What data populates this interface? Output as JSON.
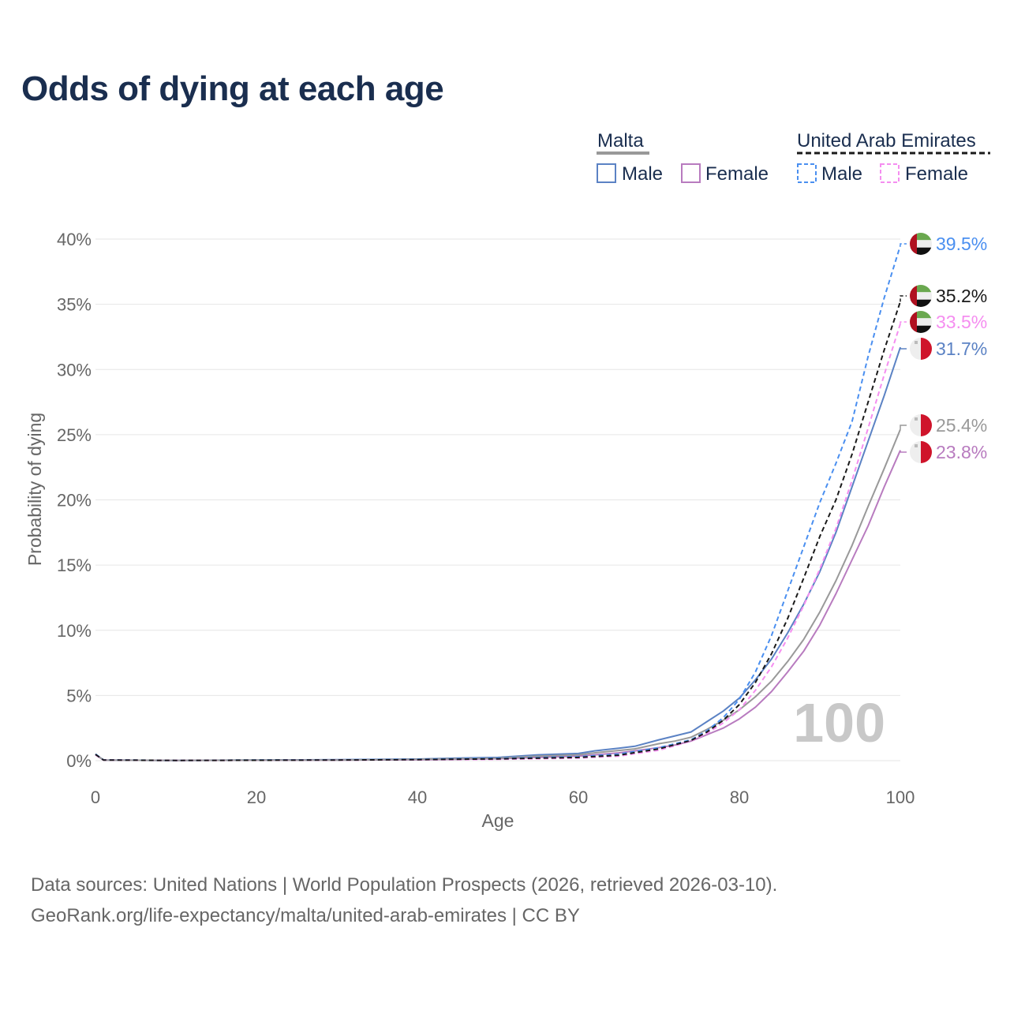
{
  "title": "Odds of dying at each age",
  "legend": {
    "groups": [
      {
        "country": "Malta",
        "male": "Male",
        "female": "Female"
      },
      {
        "country": "United Arab Emirates",
        "male": "Male",
        "female": "Female"
      }
    ]
  },
  "watermark": "100",
  "sources": {
    "line1": "Data sources: United Nations | World Population Prospects (2026, retrieved 2026-03-10).",
    "line2": "GeoRank.org/life-expectancy/malta/united-arab-emirates | CC BY"
  },
  "colors": {
    "malta_male": "#5b82c4",
    "malta_female": "#b87bbf",
    "malta_both": "#999999",
    "uae_male": "#4a8ff0",
    "uae_female": "#f58ef0",
    "uae_both": "#1a1a1a",
    "grid": "#e6e6e6",
    "title": "#1a2e4f"
  },
  "chart_data": {
    "type": "line",
    "title": "Odds of dying at each age",
    "xlabel": "Age",
    "ylabel": "Probability of dying",
    "xlim": [
      0,
      100
    ],
    "ylim": [
      0,
      40
    ],
    "xticks": [
      0,
      20,
      40,
      60,
      80,
      100
    ],
    "yticks": [
      0,
      5,
      10,
      15,
      20,
      25,
      30,
      35,
      40
    ],
    "ytick_labels": [
      "0%",
      "5%",
      "10%",
      "15%",
      "20%",
      "25%",
      "30%",
      "35%",
      "40%"
    ],
    "legend_position": "top-right",
    "series": [
      {
        "name": "Malta Male",
        "country": "Malta",
        "sex": "Male",
        "style": "solid",
        "color": "#5b82c4",
        "end_label": "31.7%",
        "x": [
          0,
          1,
          10,
          20,
          30,
          40,
          45,
          50,
          55,
          60,
          62,
          65,
          67,
          70,
          72,
          74,
          76,
          78,
          80,
          82,
          84,
          86,
          88,
          90,
          92,
          94,
          96,
          98,
          100
        ],
        "y": [
          0.5,
          0.05,
          0.02,
          0.05,
          0.07,
          0.12,
          0.2,
          0.25,
          0.45,
          0.55,
          0.75,
          0.95,
          1.1,
          1.6,
          1.9,
          2.2,
          3.0,
          3.8,
          4.8,
          6.2,
          7.8,
          9.8,
          12.0,
          14.5,
          17.5,
          21.0,
          24.5,
          28.0,
          31.7
        ]
      },
      {
        "name": "Malta Female",
        "country": "Malta",
        "sex": "Female",
        "style": "solid",
        "color": "#b87bbf",
        "end_label": "23.8%",
        "x": [
          0,
          1,
          10,
          20,
          30,
          40,
          45,
          50,
          55,
          60,
          62,
          65,
          67,
          70,
          72,
          74,
          76,
          78,
          80,
          82,
          84,
          86,
          88,
          90,
          92,
          94,
          96,
          98,
          100
        ],
        "y": [
          0.45,
          0.04,
          0.02,
          0.03,
          0.04,
          0.07,
          0.1,
          0.15,
          0.25,
          0.35,
          0.45,
          0.6,
          0.75,
          1.0,
          1.2,
          1.5,
          2.0,
          2.5,
          3.2,
          4.1,
          5.3,
          6.8,
          8.4,
          10.4,
          12.8,
          15.4,
          18.0,
          21.0,
          23.8
        ]
      },
      {
        "name": "Malta",
        "country": "Malta",
        "sex": "Both",
        "style": "solid",
        "color": "#999999",
        "end_label": "25.4%",
        "x": [
          0,
          1,
          10,
          20,
          30,
          40,
          45,
          50,
          55,
          60,
          62,
          65,
          67,
          70,
          72,
          74,
          76,
          78,
          80,
          82,
          84,
          86,
          88,
          90,
          92,
          94,
          96,
          98,
          100
        ],
        "y": [
          0.48,
          0.05,
          0.02,
          0.04,
          0.05,
          0.1,
          0.15,
          0.2,
          0.35,
          0.45,
          0.6,
          0.78,
          0.9,
          1.3,
          1.5,
          1.8,
          2.4,
          3.1,
          3.9,
          4.9,
          6.1,
          7.6,
          9.3,
          11.4,
          13.8,
          16.5,
          19.5,
          22.4,
          25.4
        ]
      },
      {
        "name": "United Arab Emirates Male",
        "country": "United Arab Emirates",
        "sex": "Male",
        "style": "dashed",
        "color": "#4a8ff0",
        "end_label": "39.5%",
        "x": [
          0,
          1,
          10,
          20,
          30,
          40,
          50,
          60,
          65,
          70,
          74,
          76,
          78,
          80,
          82,
          84,
          86,
          88,
          90,
          92,
          94,
          96,
          98,
          100
        ],
        "y": [
          0.5,
          0.06,
          0.02,
          0.04,
          0.06,
          0.1,
          0.18,
          0.3,
          0.5,
          1.0,
          1.6,
          2.3,
          3.3,
          4.7,
          6.8,
          9.6,
          13.0,
          16.4,
          19.8,
          22.8,
          26.0,
          31.0,
          35.5,
          39.5
        ]
      },
      {
        "name": "United Arab Emirates Female",
        "country": "United Arab Emirates",
        "sex": "Female",
        "style": "dashed",
        "color": "#f58ef0",
        "end_label": "33.5%",
        "x": [
          0,
          1,
          10,
          20,
          30,
          40,
          50,
          60,
          65,
          70,
          74,
          76,
          78,
          80,
          82,
          84,
          86,
          88,
          90,
          92,
          94,
          96,
          98,
          100
        ],
        "y": [
          0.45,
          0.05,
          0.02,
          0.03,
          0.04,
          0.06,
          0.1,
          0.2,
          0.35,
          0.8,
          1.5,
          2.1,
          2.9,
          3.9,
          5.4,
          7.2,
          9.4,
          11.9,
          14.7,
          17.8,
          21.5,
          25.5,
          29.6,
          33.5
        ]
      },
      {
        "name": "United Arab Emirates",
        "country": "United Arab Emirates",
        "sex": "Both",
        "style": "dashed",
        "color": "#1a1a1a",
        "end_label": "35.2%",
        "x": [
          0,
          1,
          10,
          20,
          30,
          40,
          50,
          60,
          65,
          70,
          74,
          76,
          78,
          80,
          82,
          84,
          86,
          88,
          90,
          92,
          94,
          96,
          98,
          100
        ],
        "y": [
          0.48,
          0.05,
          0.02,
          0.03,
          0.05,
          0.08,
          0.14,
          0.25,
          0.42,
          0.9,
          1.55,
          2.2,
          3.1,
          4.3,
          6.0,
          8.2,
          10.9,
          14.0,
          17.2,
          20.0,
          23.5,
          27.5,
          31.5,
          35.2
        ]
      }
    ]
  }
}
